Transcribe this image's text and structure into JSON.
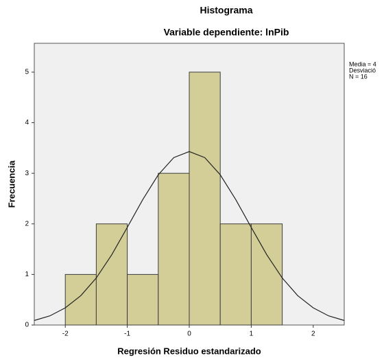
{
  "chart_data": {
    "type": "histogram",
    "title": "Histograma",
    "subtitle": "Variable dependiente: lnPib",
    "x_label": "Regresión Residuo estandarizado",
    "y_label": "Frecuencia",
    "annotations": [
      "Media = 4",
      "Desviació",
      "N = 16"
    ],
    "bins": [
      -2,
      -1.5,
      -1,
      -0.5,
      0,
      0.5,
      1,
      1.5
    ],
    "values": [
      1,
      2,
      1,
      3,
      5,
      2,
      2
    ],
    "color": "#d3ce97",
    "edge_color": "#3c3c3c",
    "background": "#f0f0f0",
    "curve": {
      "x": [
        -2.5,
        -2.25,
        -2,
        -1.75,
        -1.5,
        -1.25,
        -1,
        -0.75,
        -0.5,
        -0.25,
        0,
        0.25,
        0.5,
        0.75,
        1,
        1.25,
        1.5,
        1.75,
        2,
        2.25,
        2.5
      ],
      "y": [
        0.09,
        0.18,
        0.34,
        0.58,
        0.93,
        1.39,
        1.93,
        2.48,
        2.97,
        3.31,
        3.43,
        3.31,
        2.97,
        2.48,
        1.93,
        1.39,
        0.93,
        0.58,
        0.34,
        0.18,
        0.09
      ]
    },
    "xlim": [
      -2.5,
      2.5
    ],
    "xticks": [
      -2,
      -1,
      0,
      1,
      2
    ],
    "ylim": [
      0,
      5.57
    ],
    "yticks": [
      0,
      1,
      2,
      3,
      4,
      5
    ]
  }
}
